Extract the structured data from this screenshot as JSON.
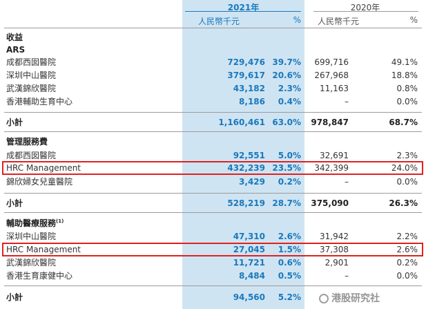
{
  "header": {
    "year_2021": "2021年",
    "year_2020": "2020年",
    "currency_2021": "人民幣千元",
    "percent_2021": "%",
    "currency_2020": "人民幣千元",
    "percent_2020": "%"
  },
  "revenue": {
    "title": "收益",
    "subtitle": "ARS",
    "rows": [
      {
        "name": "成都西囡醫院",
        "v2021": "729,476",
        "p2021": "39.7%",
        "v2020": "699,716",
        "p2020": "49.1%"
      },
      {
        "name": "深圳中山醫院",
        "v2021": "379,617",
        "p2021": "20.6%",
        "v2020": "267,968",
        "p2020": "18.8%"
      },
      {
        "name": "武漢錦欣醫院",
        "v2021": "43,182",
        "p2021": "2.3%",
        "v2020": "11,163",
        "p2020": "0.8%"
      },
      {
        "name": "香港輔助生育中心",
        "v2021": "8,186",
        "p2021": "0.4%",
        "v2020": "–",
        "p2020": "0.0%"
      }
    ],
    "subtotal": {
      "name": "小計",
      "v2021": "1,160,461",
      "p2021": "63.0%",
      "v2020": "978,847",
      "p2020": "68.7%"
    }
  },
  "management": {
    "title": "管理服務費",
    "rows": [
      {
        "name": "成都西囡醫院",
        "v2021": "92,551",
        "p2021": "5.0%",
        "v2020": "32,691",
        "p2020": "2.3%"
      },
      {
        "name": "HRC Management",
        "v2021": "432,239",
        "p2021": "23.5%",
        "v2020": "342,399",
        "p2020": "24.0%"
      },
      {
        "name": "錦欣婦女兒童醫院",
        "v2021": "3,429",
        "p2021": "0.2%",
        "v2020": "–",
        "p2020": "0.0%"
      }
    ],
    "subtotal": {
      "name": "小計",
      "v2021": "528,219",
      "p2021": "28.7%",
      "v2020": "375,090",
      "p2020": "26.3%"
    }
  },
  "ancillary": {
    "title": "輔助醫療服務",
    "note": "(1)",
    "rows": [
      {
        "name": "深圳中山醫院",
        "v2021": "47,310",
        "p2021": "2.6%",
        "v2020": "31,942",
        "p2020": "2.2%"
      },
      {
        "name": "HRC Management",
        "v2021": "27,045",
        "p2021": "1.5%",
        "v2020": "37,308",
        "p2020": "2.6%"
      },
      {
        "name": "武漢錦欣醫院",
        "v2021": "11,721",
        "p2021": "0.6%",
        "v2020": "2,901",
        "p2020": "0.2%"
      },
      {
        "name": "香港生育康健中心",
        "v2021": "8,484",
        "p2021": "0.5%",
        "v2020": "–",
        "p2020": "0.0%"
      }
    ],
    "subtotal": {
      "name": "小計",
      "v2021": "94,560",
      "p2021": "5.2%"
    }
  },
  "watermark": {
    "text": "港股研究社"
  }
}
